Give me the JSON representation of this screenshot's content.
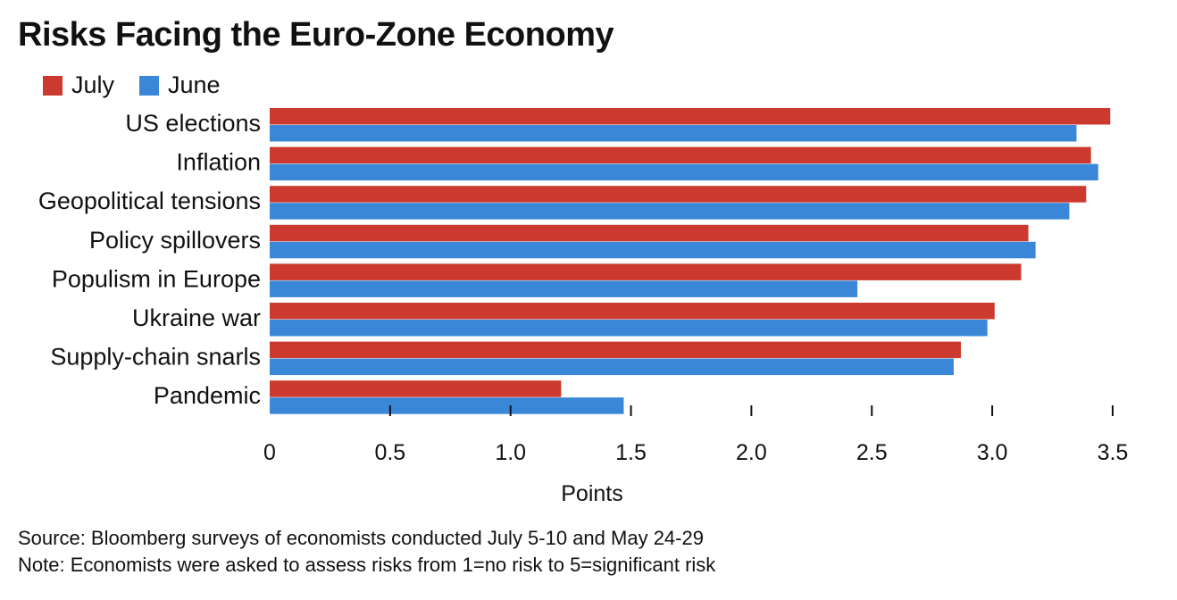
{
  "title": "Risks Facing the Euro-Zone Economy",
  "legend": [
    {
      "label": "July",
      "color": "#cc3a2f"
    },
    {
      "label": "June",
      "color": "#3a87d8"
    }
  ],
  "footnotes": {
    "source": "Source: Bloomberg surveys of economists conducted July 5-10 and May 24-29",
    "note": "Note: Economists were asked to assess risks from 1=no risk to 5=significant risk"
  },
  "chart_data": {
    "type": "bar",
    "orientation": "horizontal",
    "categories": [
      "US elections",
      "Inflation",
      "Geopolitical tensions",
      "Policy spillovers",
      "Populism in Europe",
      "Ukraine war",
      "Supply-chain snarls",
      "Pandemic"
    ],
    "series": [
      {
        "name": "July",
        "color": "#cc3a2f",
        "values": [
          3.49,
          3.41,
          3.39,
          3.15,
          3.12,
          3.01,
          2.87,
          1.21
        ]
      },
      {
        "name": "June",
        "color": "#3a87d8",
        "values": [
          3.35,
          3.44,
          3.32,
          3.18,
          2.44,
          2.98,
          2.84,
          1.47
        ]
      }
    ],
    "xlabel": "Points",
    "ylabel": "",
    "xlim": [
      0,
      3.6
    ],
    "xticks": [
      0,
      0.5,
      1.0,
      1.5,
      2.0,
      2.5,
      3.0,
      3.5
    ],
    "xtick_labels": [
      "0",
      "0.5",
      "1.0",
      "1.5",
      "2.0",
      "2.5",
      "3.0",
      "3.5"
    ],
    "grid": false,
    "legend_position": "top-left"
  }
}
